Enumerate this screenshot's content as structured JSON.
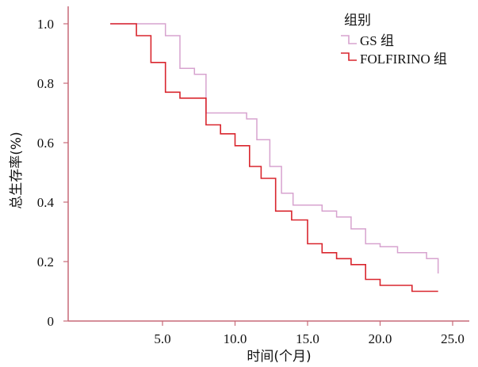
{
  "chart_data": {
    "type": "line",
    "subtype": "step",
    "xlabel": "时间(个月)",
    "ylabel": "总生存率(%)",
    "xlim": [
      0,
      26
    ],
    "ylim": [
      0,
      1.06
    ],
    "x_ticks": [
      5.0,
      10.0,
      15.0,
      20.0,
      25.0
    ],
    "x_tick_labels": [
      "5.0",
      "10.0",
      "15.0",
      "20.0",
      "25.0"
    ],
    "y_ticks": [
      0,
      0.2,
      0.4,
      0.6,
      0.8,
      1.0
    ],
    "y_tick_labels": [
      "0",
      "0.2",
      "0.4",
      "0.6",
      "0.8",
      "1.0"
    ],
    "grid": false,
    "legend": {
      "title": "组别",
      "placement": "top-right",
      "entries": [
        {
          "label": "GS 组",
          "color": "#d7a3cf"
        },
        {
          "label": "FOLFIRINO 组",
          "color": "#d9262e"
        }
      ]
    },
    "series": [
      {
        "label": "GS 组",
        "color": "#d7a3cf",
        "x": [
          1.4,
          5.2,
          6.2,
          7.2,
          8.0,
          9.0,
          10.8,
          11.5,
          12.4,
          13.2,
          14.0,
          16.0,
          17.0,
          18.0,
          19.0,
          20.0,
          21.2,
          23.2,
          24.0
        ],
        "y": [
          1.0,
          0.96,
          0.85,
          0.83,
          0.7,
          0.7,
          0.68,
          0.61,
          0.52,
          0.43,
          0.39,
          0.37,
          0.35,
          0.31,
          0.26,
          0.25,
          0.23,
          0.21,
          0.16
        ]
      },
      {
        "label": "FOLFIRINO 组",
        "color": "#d9262e",
        "x": [
          1.4,
          3.2,
          4.2,
          5.2,
          6.2,
          8.0,
          9.0,
          10.0,
          11.0,
          11.8,
          12.8,
          13.9,
          15.0,
          16.0,
          17.0,
          18.0,
          19.0,
          20.0,
          22.2,
          24.0
        ],
        "y": [
          1.0,
          0.96,
          0.87,
          0.77,
          0.75,
          0.66,
          0.63,
          0.59,
          0.52,
          0.48,
          0.37,
          0.34,
          0.26,
          0.23,
          0.21,
          0.19,
          0.14,
          0.12,
          0.1,
          0.1
        ]
      }
    ]
  }
}
